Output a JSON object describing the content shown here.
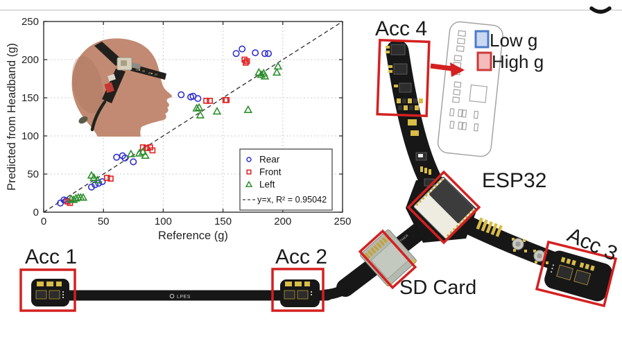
{
  "page": {
    "background": "#ffffff",
    "top_rule_color": "#c9c9c9"
  },
  "chart_data": {
    "type": "scatter",
    "title": "",
    "xlabel": "Reference (g)",
    "ylabel": "Predicted from Headband (g)",
    "xlim": [
      0,
      250
    ],
    "ylim": [
      0,
      250
    ],
    "xticks": [
      0,
      50,
      100,
      150,
      200,
      250
    ],
    "yticks": [
      0,
      50,
      100,
      150,
      200,
      250
    ],
    "grid": true,
    "legend_position": "lower right",
    "series": [
      {
        "name": "Rear",
        "marker": "circle",
        "color": "#2e2ecf",
        "points": [
          [
            14,
            12
          ],
          [
            17,
            16
          ],
          [
            19,
            15
          ],
          [
            40,
            33
          ],
          [
            43,
            36
          ],
          [
            46,
            38
          ],
          [
            49,
            40
          ],
          [
            61,
            72
          ],
          [
            66,
            74
          ],
          [
            68,
            71
          ],
          [
            75,
            66
          ],
          [
            115,
            154
          ],
          [
            123,
            151
          ],
          [
            125,
            152
          ],
          [
            129,
            149
          ],
          [
            161,
            208
          ],
          [
            166,
            214
          ],
          [
            177,
            209
          ],
          [
            185,
            208
          ],
          [
            188,
            208
          ]
        ]
      },
      {
        "name": "Front",
        "marker": "square",
        "color": "#e02020",
        "points": [
          [
            20,
            14
          ],
          [
            22,
            12
          ],
          [
            53,
            45
          ],
          [
            56,
            44
          ],
          [
            83,
            85
          ],
          [
            86,
            84
          ],
          [
            89,
            85
          ],
          [
            91,
            81
          ],
          [
            136,
            146
          ],
          [
            139,
            146
          ],
          [
            152,
            147
          ],
          [
            153,
            147
          ],
          [
            168,
            200
          ],
          [
            169,
            196
          ],
          [
            170,
            198
          ]
        ]
      },
      {
        "name": "Left",
        "marker": "triangle",
        "color": "#2d8f2d",
        "points": [
          [
            23,
            17
          ],
          [
            25,
            16
          ],
          [
            27,
            18
          ],
          [
            29,
            19
          ],
          [
            31,
            19
          ],
          [
            33,
            19
          ],
          [
            40,
            48
          ],
          [
            42,
            45
          ],
          [
            45,
            42
          ],
          [
            73,
            76
          ],
          [
            80,
            77
          ],
          [
            83,
            79
          ],
          [
            85,
            74
          ],
          [
            128,
            136
          ],
          [
            130,
            137
          ],
          [
            131,
            127
          ],
          [
            145,
            132
          ],
          [
            171,
            134
          ],
          [
            180,
            183
          ],
          [
            182,
            180
          ],
          [
            184,
            182
          ],
          [
            185,
            178
          ],
          [
            195,
            183
          ],
          [
            196,
            191
          ]
        ]
      }
    ],
    "reference_line": {
      "label": "y=x, R² = 0.95042",
      "style": "dashed",
      "color": "#3a3a3a",
      "from": [
        0,
        0
      ],
      "to": [
        250,
        250
      ]
    }
  },
  "pcb": {
    "annotation_color": "#d42020",
    "labels": {
      "acc1": "Acc 1",
      "acc2": "Acc 2",
      "acc3": "Acc 3",
      "acc4": "Acc 4",
      "esp32": "ESP32",
      "sd_card": "SD Card"
    },
    "legend": {
      "low_g": {
        "label": "Low g",
        "fill": "#c9d9f2",
        "stroke": "#4a7cc7"
      },
      "high_g": {
        "label": "High g",
        "fill": "#f2bcbc",
        "stroke": "#cc3a3a"
      }
    },
    "silkscreen": {
      "lpes": "LPES",
      "panther": "PANTHER"
    }
  }
}
